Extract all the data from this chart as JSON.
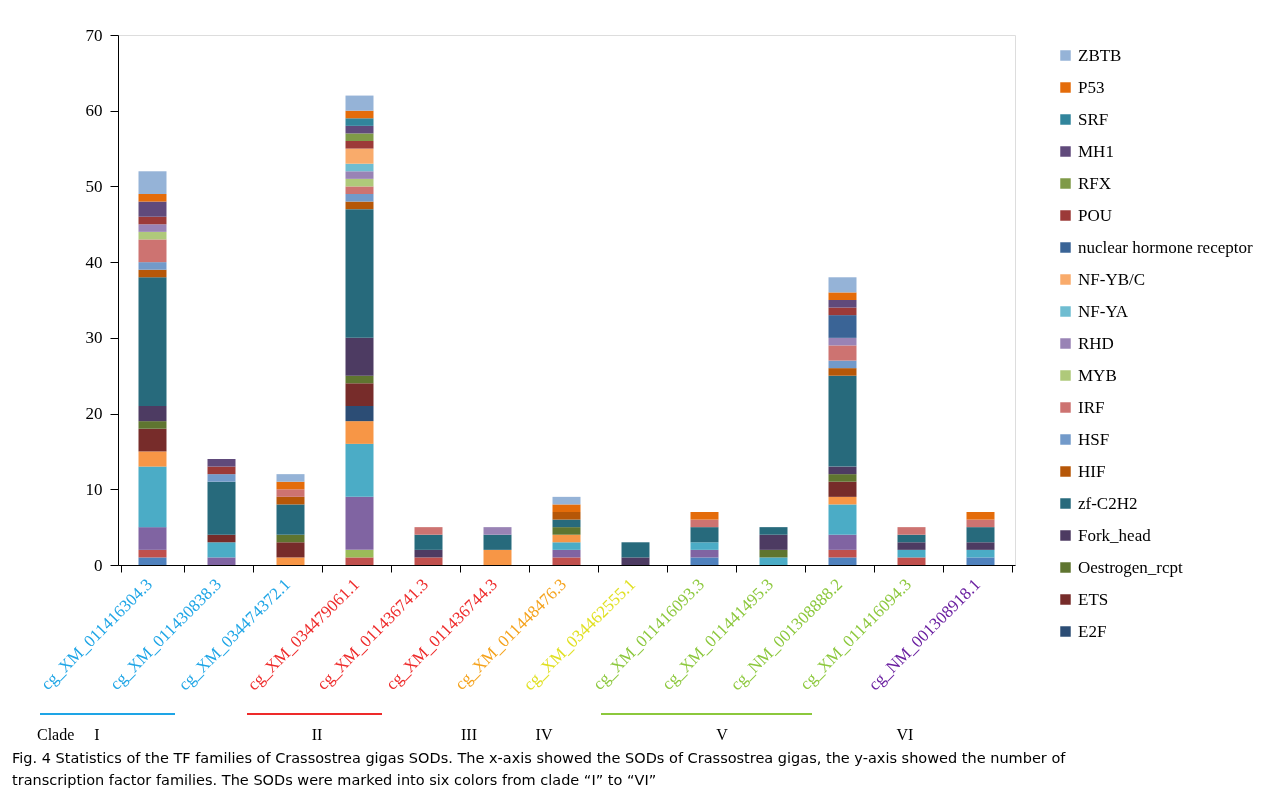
{
  "chart_data": {
    "type": "bar",
    "stacked": true,
    "ylim": [
      0,
      70
    ],
    "yticks": [
      0,
      10,
      20,
      30,
      40,
      50,
      60,
      70
    ],
    "grid": false,
    "legend": "right",
    "categories": [
      "cg_XM_011416304.3",
      "cg_XM_011430838.3",
      "cg_XM_034474372.1",
      "cg_XM_034479061.1",
      "cg_XM_011436741.3",
      "cg_XM_011436744.3",
      "cg_XM_011448476.3",
      "cg_XM_034462555.1",
      "cg_XM_011416093.3",
      "cg_XM_011441495.3",
      "cg_NM_001308888.2",
      "cg_XM_011416094.3",
      "cg_NM_001308918.1"
    ],
    "series": [
      {
        "color": "#4f81bd",
        "values": [
          1,
          0,
          0,
          0,
          0,
          0,
          0,
          0,
          1,
          0,
          1,
          0,
          1
        ]
      },
      {
        "color": "#c0504d",
        "values": [
          1,
          0,
          0,
          1,
          1,
          0,
          1,
          0,
          0,
          0,
          1,
          1,
          0
        ]
      },
      {
        "color": "#9bbb59",
        "values": [
          0,
          0,
          0,
          1,
          0,
          0,
          0,
          0,
          0,
          0,
          0,
          0,
          0
        ]
      },
      {
        "color": "#8064a2",
        "values": [
          3,
          1,
          0,
          7,
          0,
          0,
          1,
          0,
          1,
          0,
          2,
          0,
          0
        ]
      },
      {
        "color": "#4bacc6",
        "values": [
          8,
          2,
          0,
          7,
          0,
          0,
          1,
          0,
          1,
          1,
          4,
          1,
          1
        ]
      },
      {
        "color": "#f79646",
        "values": [
          2,
          0,
          1,
          3,
          0,
          2,
          1,
          0,
          0,
          0,
          1,
          0,
          0
        ]
      },
      {
        "name": "E2F",
        "color": "#2c4d75",
        "values": [
          0,
          0,
          0,
          2,
          0,
          0,
          0,
          0,
          0,
          0,
          0,
          0,
          0
        ]
      },
      {
        "name": "ETS",
        "color": "#772c2a",
        "values": [
          3,
          1,
          2,
          3,
          0,
          0,
          0,
          0,
          0,
          0,
          2,
          0,
          0
        ]
      },
      {
        "name": "Oestrogen_rcpt",
        "color": "#5f7530",
        "values": [
          1,
          0,
          1,
          1,
          0,
          0,
          1,
          0,
          0,
          1,
          1,
          0,
          0
        ]
      },
      {
        "name": "Fork_head",
        "color": "#4d3b62",
        "values": [
          2,
          0,
          0,
          5,
          1,
          0,
          0,
          1,
          0,
          2,
          1,
          1,
          1
        ]
      },
      {
        "name": "zf-C2H2",
        "color": "#276a7c",
        "values": [
          17,
          7,
          4,
          17,
          2,
          2,
          1,
          2,
          2,
          1,
          12,
          1,
          2
        ]
      },
      {
        "name": "HIF",
        "color": "#b65708",
        "values": [
          1,
          0,
          1,
          1,
          0,
          0,
          1,
          0,
          0,
          0,
          1,
          0,
          0
        ]
      },
      {
        "name": "HSF",
        "color": "#729aca",
        "values": [
          1,
          1,
          0,
          1,
          0,
          0,
          0,
          0,
          0,
          0,
          1,
          0,
          0
        ]
      },
      {
        "name": "IRF",
        "color": "#cd7371",
        "values": [
          3,
          0,
          1,
          1,
          1,
          0,
          0,
          0,
          1,
          0,
          2,
          1,
          1
        ]
      },
      {
        "name": "MYB",
        "color": "#afc97a",
        "values": [
          1,
          0,
          0,
          1,
          0,
          0,
          0,
          0,
          0,
          0,
          0,
          0,
          0
        ]
      },
      {
        "name": "RHD",
        "color": "#9983b5",
        "values": [
          1,
          0,
          0,
          1,
          0,
          1,
          0,
          0,
          0,
          0,
          1,
          0,
          0
        ]
      },
      {
        "name": "NF-YA",
        "color": "#6fbdd1",
        "values": [
          0,
          0,
          0,
          1,
          0,
          0,
          0,
          0,
          0,
          0,
          0,
          0,
          0
        ]
      },
      {
        "name": "NF-YB/C",
        "color": "#f9ab6b",
        "values": [
          0,
          0,
          0,
          2,
          0,
          0,
          0,
          0,
          0,
          0,
          0,
          0,
          0
        ]
      },
      {
        "name": "nuclear hormone receptor",
        "color": "#3a6496",
        "values": [
          0,
          0,
          0,
          0,
          0,
          0,
          0,
          0,
          0,
          0,
          3,
          0,
          0
        ]
      },
      {
        "name": "POU",
        "color": "#9c3a38",
        "values": [
          1,
          1,
          0,
          1,
          0,
          0,
          0,
          0,
          0,
          0,
          1,
          0,
          0
        ]
      },
      {
        "name": "RFX",
        "color": "#7f9a48",
        "values": [
          0,
          0,
          0,
          1,
          0,
          0,
          0,
          0,
          0,
          0,
          0,
          0,
          0
        ]
      },
      {
        "name": "MH1",
        "color": "#604a7b",
        "values": [
          2,
          1,
          0,
          1,
          0,
          0,
          0,
          0,
          0,
          0,
          1,
          0,
          0
        ]
      },
      {
        "name": "SRF",
        "color": "#31859c",
        "values": [
          0,
          0,
          0,
          1,
          0,
          0,
          0,
          0,
          0,
          0,
          0,
          0,
          0
        ]
      },
      {
        "name": "P53",
        "color": "#e46c0a",
        "values": [
          1,
          0,
          1,
          1,
          0,
          0,
          1,
          0,
          1,
          0,
          1,
          0,
          1
        ]
      },
      {
        "name": "ZBTB",
        "color": "#95b3d7",
        "values": [
          3,
          0,
          1,
          2,
          0,
          0,
          1,
          0,
          0,
          0,
          2,
          0,
          0
        ]
      }
    ],
    "annotations": [
      "Clade",
      "I",
      "II",
      "III",
      "IV",
      "V",
      "VI",
      "Fig. 4  Statistics of the TF families of Crassostrea gigas SODs. The x-axis showed the SODs of Crassostrea gigas, the y-axis showed the number of transcription factor families. The SODs were marked into six colors from clade “I” to “VI”"
    ]
  }
}
